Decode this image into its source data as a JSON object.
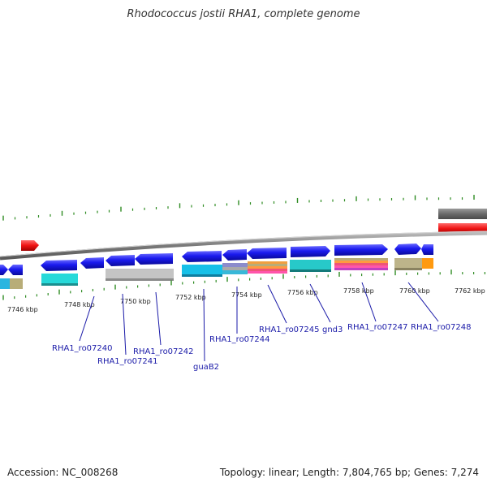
{
  "title": "Rhodococcus jostii RHA1, complete genome",
  "footer": {
    "accession": "Accession: NC_008268",
    "summary": "Topology: linear; Length: 7,804,765 bp; Genes: 7,274"
  },
  "ruler_labels": [
    "7746 kbp",
    "7748 kbp",
    "7750 kbp",
    "7752 kbp",
    "7754 kbp",
    "7756 kbp",
    "7758 kbp",
    "7760 kbp",
    "7762 kbp"
  ],
  "gene_labels": [
    "RHA1_ro07240",
    "RHA1_ro07241",
    "RHA1_ro07242",
    "guaB2",
    "RHA1_ro07244",
    "RHA1_ro07245",
    "gnd3",
    "RHA1_ro07247",
    "RHA1_ro07248"
  ],
  "colors": {
    "backbone": "#8c8c8c",
    "gene_blue": "#1515e0",
    "tick_green": "#2e8b22",
    "label_blue": "#1a1aa8",
    "red_feature": "#e81010"
  }
}
